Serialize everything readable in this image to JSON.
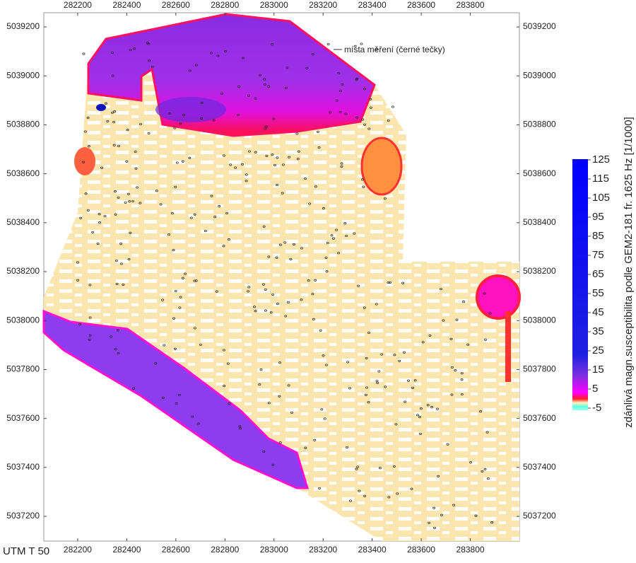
{
  "map": {
    "xlim": [
      282062,
      284000
    ],
    "ylim": [
      5037099,
      5039258
    ],
    "xticks": [
      282200,
      282400,
      282600,
      282800,
      283000,
      283200,
      283400,
      283600,
      283800
    ],
    "yticks": [
      5039200,
      5039000,
      5038800,
      5038600,
      5038400,
      5038200,
      5038000,
      5037800,
      5037600,
      5037400,
      5037200
    ],
    "annotation": "místa měření (černé tečky)",
    "corner_label": "UTM T 50",
    "colorbar": {
      "title": "zdánlivá magn.susceptibilita podle GEM2-181 fr. 1625 Hz [1/1000]",
      "lim": [
        -5,
        125
      ],
      "ticks": [
        125,
        115,
        105,
        95,
        85,
        75,
        65,
        55,
        45,
        35,
        25,
        15,
        5,
        -5
      ]
    }
  }
}
